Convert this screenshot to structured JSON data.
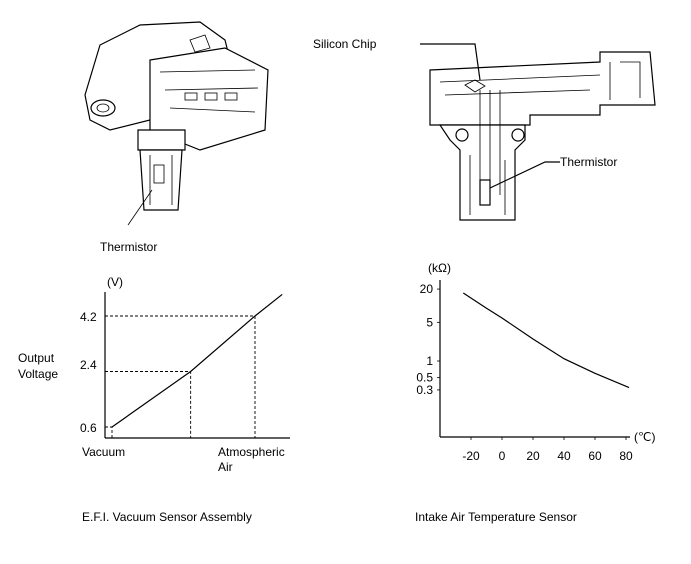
{
  "labels": {
    "left_thermistor": "Thermistor",
    "silicon_chip": "Silicon Chip",
    "right_thermistor": "Thermistor",
    "caption_left": "E.F.I. Vacuum Sensor Assembly",
    "caption_right": "Intake Air Temperature Sensor"
  },
  "chart_data": [
    {
      "type": "line",
      "ylabel": "Output Voltage",
      "yunit": "(V)",
      "yticks": [
        "4.2",
        "2.4",
        "0.6"
      ],
      "ytick_values": [
        4.2,
        2.4,
        0.6
      ],
      "xticks": [
        "Vacuum",
        "",
        "Atmospheric Air"
      ],
      "xtick_line1": "Atmospheric",
      "xtick_line2": "Air",
      "x": [
        0,
        0.55,
        1.0,
        1.19
      ],
      "y": [
        0.6,
        2.4,
        4.2,
        4.9
      ],
      "ylim": [
        0.3,
        5.2
      ],
      "reference_lines": "dashed guides at 0.6, 2.4, 4.2",
      "grid": false
    },
    {
      "type": "line",
      "yunit": "(kΩ)",
      "xunit": "(℃)",
      "yscale": "log",
      "yticks": [
        "20",
        "5",
        "1",
        "0.5",
        "0.3"
      ],
      "ytick_values": [
        20,
        5,
        1,
        0.5,
        0.3
      ],
      "xticks": [
        "-20",
        "0",
        "20",
        "40",
        "60",
        "80"
      ],
      "xtick_values": [
        -20,
        0,
        20,
        40,
        60,
        80
      ],
      "x": [
        -25,
        -10,
        0,
        20,
        40,
        60,
        82
      ],
      "y": [
        17,
        9,
        6,
        2.5,
        1.1,
        0.6,
        0.33
      ],
      "xlim": [
        -45,
        90
      ],
      "grid": false
    }
  ]
}
